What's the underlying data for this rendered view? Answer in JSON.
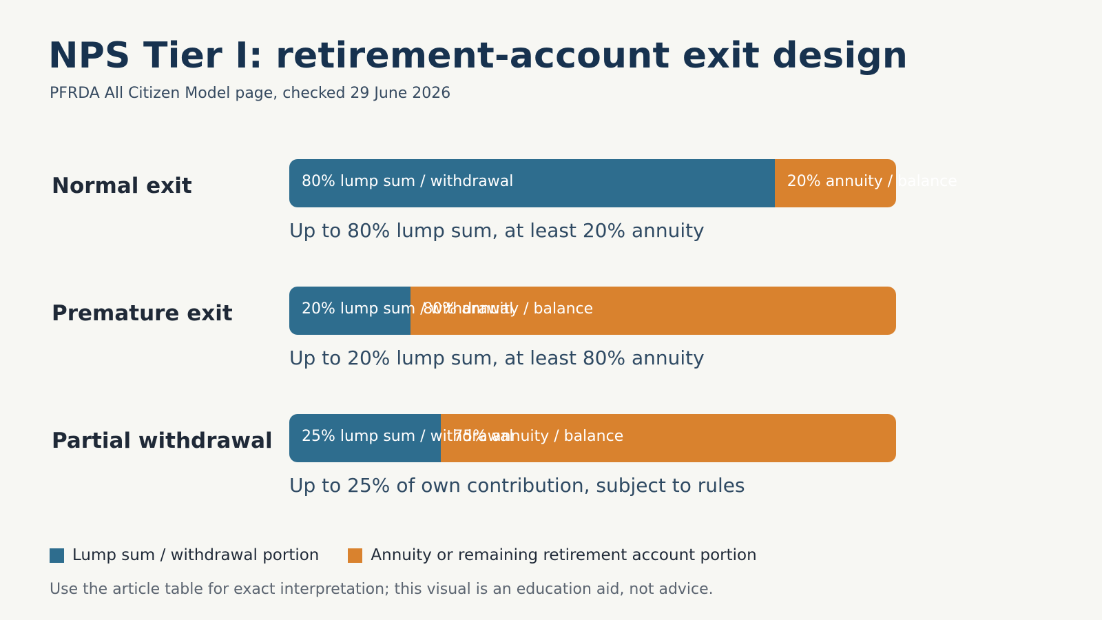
{
  "title": "NPS Tier I: retirement-account exit design",
  "subtitle": "PFRDA All Citizen Model page, checked 29 June 2026",
  "colors": {
    "lump": "#2e6d8e",
    "annuity": "#d9822e",
    "title": "#17324f",
    "background": "#f7f7f3"
  },
  "chart_data": {
    "type": "bar",
    "orientation": "horizontal",
    "stacked": true,
    "categories": [
      "Normal exit",
      "Premature exit",
      "Partial withdrawal"
    ],
    "series": [
      {
        "name": "Lump sum / withdrawal portion",
        "values": [
          80,
          20,
          25
        ],
        "labels": [
          "80% lump sum / withdrawal",
          "20% lump sum / withdrawal",
          "25% lump sum / withdrawal"
        ]
      },
      {
        "name": "Annuity or remaining retirement account portion",
        "values": [
          20,
          80,
          75
        ],
        "labels": [
          "20% annuity / balance",
          "80% annuity / balance",
          "75% annuity / balance"
        ]
      }
    ],
    "notes": [
      "Up to 80% lump sum, at least 20% annuity",
      "Up to 20% lump sum, at least 80% annuity",
      "Up to 25% of own contribution, subject to rules"
    ],
    "xlim": [
      0,
      100
    ],
    "legend_position": "bottom-left"
  },
  "footnote": "Use the article table for exact interpretation; this visual is an education aid, not advice."
}
